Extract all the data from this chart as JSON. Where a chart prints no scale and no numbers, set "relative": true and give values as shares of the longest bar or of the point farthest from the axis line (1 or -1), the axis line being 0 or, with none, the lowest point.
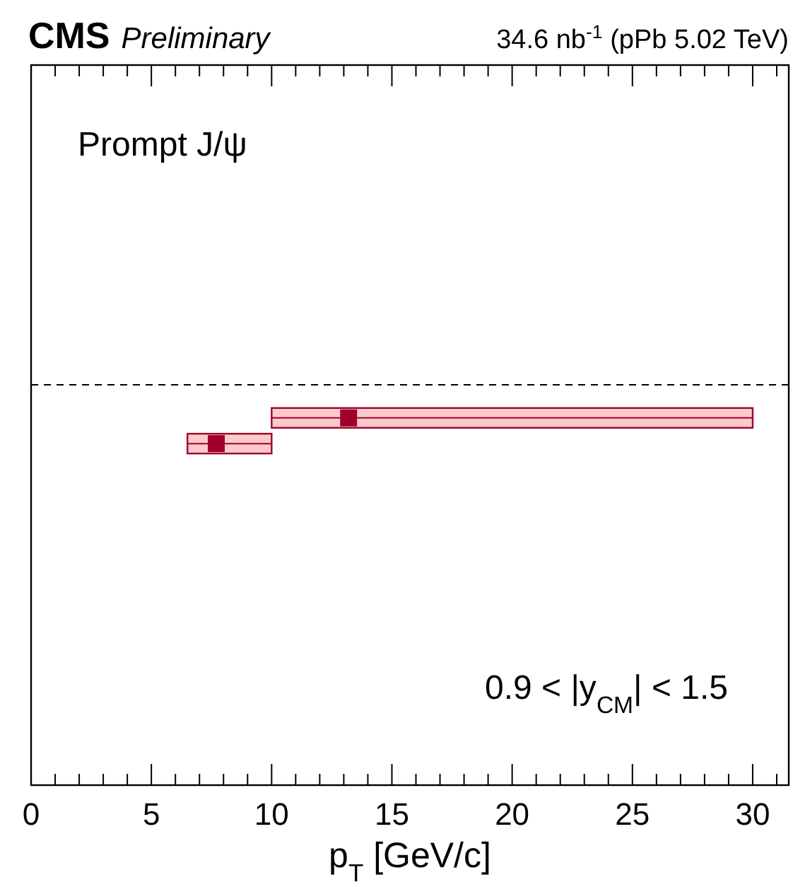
{
  "chart_data": {
    "type": "scatter",
    "title": "CMS",
    "subtitle": "Preliminary",
    "xlabel": "p$_{T}$ [GeV/c]",
    "annotations": [
      "34.6 nb$^{-1}$ (pPb 5.02 TeV)",
      "Prompt J/ψ",
      "0.9 < |y$_{CM}$| < 1.5"
    ],
    "relative": true,
    "xlim": [
      0,
      31.5
    ],
    "xticks": [
      0,
      {
        "value": 1,
        "label": null
      },
      {
        "value": 2,
        "label": null
      },
      {
        "value": 3,
        "label": null
      },
      {
        "value": 4,
        "label": null
      },
      5,
      {
        "value": 6,
        "label": null
      },
      {
        "value": 7,
        "label": null
      },
      {
        "value": 8,
        "label": null
      },
      {
        "value": 9,
        "label": null
      },
      10,
      {
        "value": 11,
        "label": null
      },
      {
        "value": 12,
        "label": null
      },
      {
        "value": 13,
        "label": null
      },
      {
        "value": 14,
        "label": null
      },
      15,
      {
        "value": 16,
        "label": null
      },
      {
        "value": 17,
        "label": null
      },
      {
        "value": 18,
        "label": null
      },
      {
        "value": 19,
        "label": null
      },
      20,
      {
        "value": 21,
        "label": null
      },
      {
        "value": 22,
        "label": null
      },
      {
        "value": 23,
        "label": null
      },
      {
        "value": 24,
        "label": null
      },
      25,
      {
        "value": 26,
        "label": null
      },
      {
        "value": 27,
        "label": null
      },
      {
        "value": 28,
        "label": null
      },
      {
        "value": 29,
        "label": null
      },
      30,
      {
        "value": 31,
        "label": null
      }
    ],
    "series": [
      {
        "color": "#a0002e",
        "x": [
          7.7,
          13.2
        ],
        "values": [
          0.93,
          1
        ],
        "xerrors": [
          [
            6.5,
            10
          ],
          [
            10,
            30
          ]
        ]
      }
    ],
    "marker": "square",
    "ref_lines": [
      {
        "axis": "y",
        "value": 1.09,
        "line_style": "dashed",
        "color": "#000000"
      }
    ]
  }
}
